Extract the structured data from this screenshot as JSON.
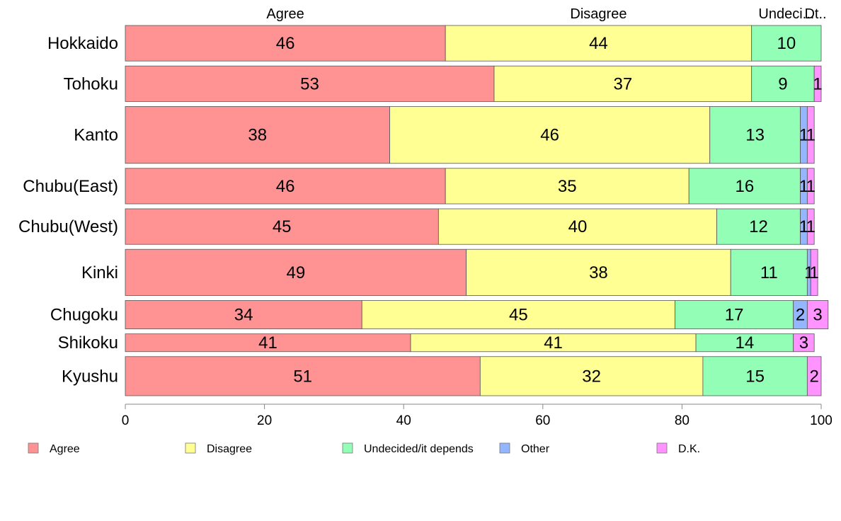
{
  "chart_data": {
    "type": "bar",
    "orientation": "horizontal",
    "stacked": true,
    "percent": true,
    "categories": [
      "Hokkaido",
      "Tohoku",
      "Kanto",
      "Chubu(East)",
      "Chubu(West)",
      "Kinki",
      "Chugoku",
      "Shikoku",
      "Kyushu"
    ],
    "series": [
      {
        "name": "Agree",
        "color": "#ff9393",
        "values": [
          46,
          53,
          38,
          46,
          45,
          49,
          34,
          41,
          51
        ]
      },
      {
        "name": "Disagree",
        "color": "#ffff93",
        "values": [
          44,
          37,
          46,
          35,
          40,
          38,
          45,
          41,
          32
        ]
      },
      {
        "name": "Undecided/it depends",
        "color": "#93ffb6",
        "values": [
          10,
          9,
          13,
          16,
          12,
          11,
          17,
          14,
          15
        ]
      },
      {
        "name": "Other",
        "color": "#93b6ff",
        "values": [
          0,
          0,
          1,
          1,
          1,
          0.5,
          2,
          0,
          0
        ]
      },
      {
        "name": "D.K.",
        "color": "#ff93ff",
        "values": [
          0,
          1,
          1,
          1,
          1,
          1,
          3,
          3,
          2
        ]
      }
    ],
    "segment_labels": [
      [
        "46",
        "44",
        "10",
        "",
        ""
      ],
      [
        "53",
        "37",
        "9",
        "",
        "1"
      ],
      [
        "38",
        "46",
        "13",
        "1",
        "1"
      ],
      [
        "46",
        "35",
        "16",
        "1",
        "1"
      ],
      [
        "45",
        "40",
        "12",
        "1",
        "1"
      ],
      [
        "49",
        "38",
        "11",
        "1",
        "1"
      ],
      [
        "34",
        "45",
        "17",
        "2",
        "3"
      ],
      [
        "41",
        "41",
        "14",
        "",
        "3"
      ],
      [
        "51",
        "32",
        "15",
        "",
        "2"
      ]
    ],
    "bar_weights": [
      1,
      1,
      1.6,
      1,
      1,
      1.3,
      0.8,
      0.5,
      1.1
    ],
    "top_labels": [
      "Agree",
      "Disagree",
      "Undeci...",
      "Dt.."
    ],
    "xlim": [
      0,
      100
    ],
    "xticks": [
      0,
      20,
      40,
      60,
      80,
      100
    ],
    "grid": false,
    "legend_position": "bottom",
    "title": "",
    "xlabel": "",
    "ylabel": ""
  }
}
